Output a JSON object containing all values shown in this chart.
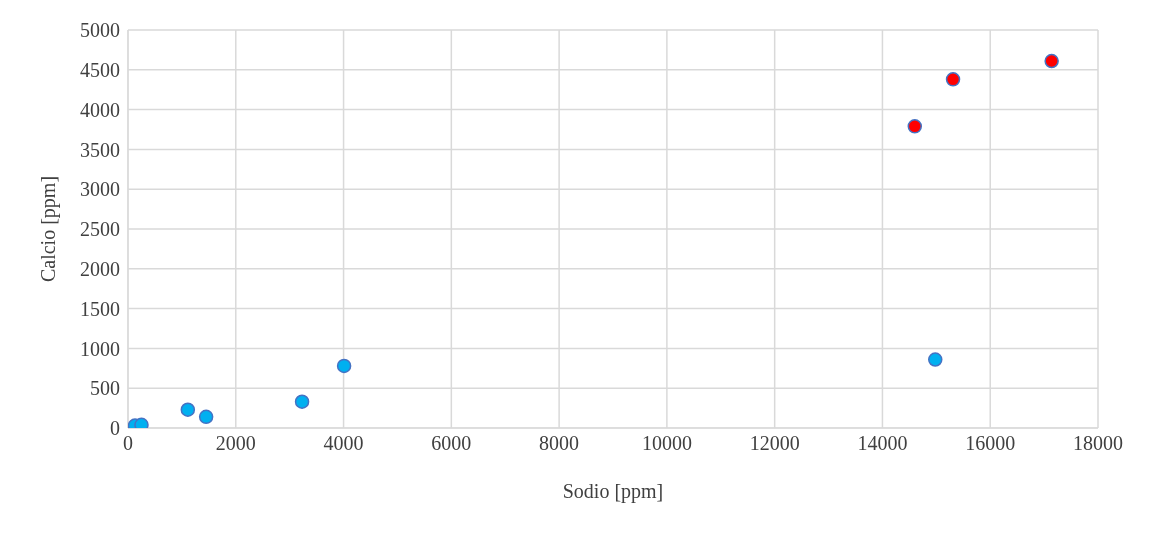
{
  "chart_data": {
    "type": "scatter",
    "xlabel": "Sodio [ppm]",
    "ylabel": "Calcio [ppm]",
    "xlim": [
      0,
      18000
    ],
    "xticks": [
      0,
      2000,
      4000,
      6000,
      8000,
      10000,
      12000,
      14000,
      16000,
      18000
    ],
    "ylim": [
      0,
      5000
    ],
    "yticks": [
      0,
      500,
      1000,
      1500,
      2000,
      2500,
      3000,
      3500,
      4000,
      4500,
      5000
    ],
    "grid": true,
    "legend": false,
    "marker": "circle",
    "series": [
      {
        "color": "#00b0f0",
        "x": [
          130,
          250,
          1110,
          1450,
          3230,
          4010,
          14980
        ],
        "values": [
          30,
          40,
          230,
          140,
          330,
          780,
          860
        ]
      },
      {
        "color": "#ff0000",
        "x": [
          14600,
          15310,
          17140
        ],
        "values": [
          3790,
          4380,
          4610
        ]
      }
    ]
  }
}
